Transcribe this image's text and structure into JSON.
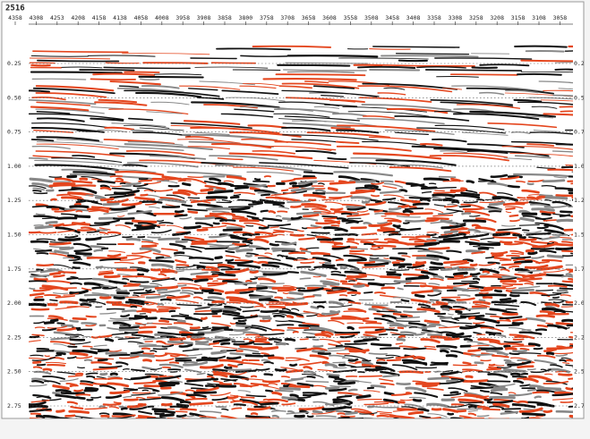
{
  "title": "2516",
  "top_axis": {
    "ticks": [
      "4358",
      "4308",
      "4253",
      "4208",
      "4158",
      "4138",
      "4058",
      "4008",
      "3958",
      "3908",
      "3858",
      "3800",
      "3758",
      "3708",
      "3658",
      "3608",
      "3558",
      "3508",
      "3458",
      "3408",
      "3358",
      "3308",
      "3258",
      "3208",
      "3158",
      "3108",
      "3058"
    ]
  },
  "left_axis": {
    "ticks": [
      "0.25",
      "0.50",
      "0.75",
      "1.00",
      "1.25",
      "1.50",
      "1.75",
      "2.00",
      "2.25",
      "2.50",
      "2.75"
    ]
  },
  "right_axis": {
    "ticks": [
      "0.2",
      "0.5",
      "0.7",
      "1.0",
      "1.2",
      "1.5",
      "1.7",
      "2.0",
      "2.2",
      "2.5",
      "2.7"
    ]
  }
}
